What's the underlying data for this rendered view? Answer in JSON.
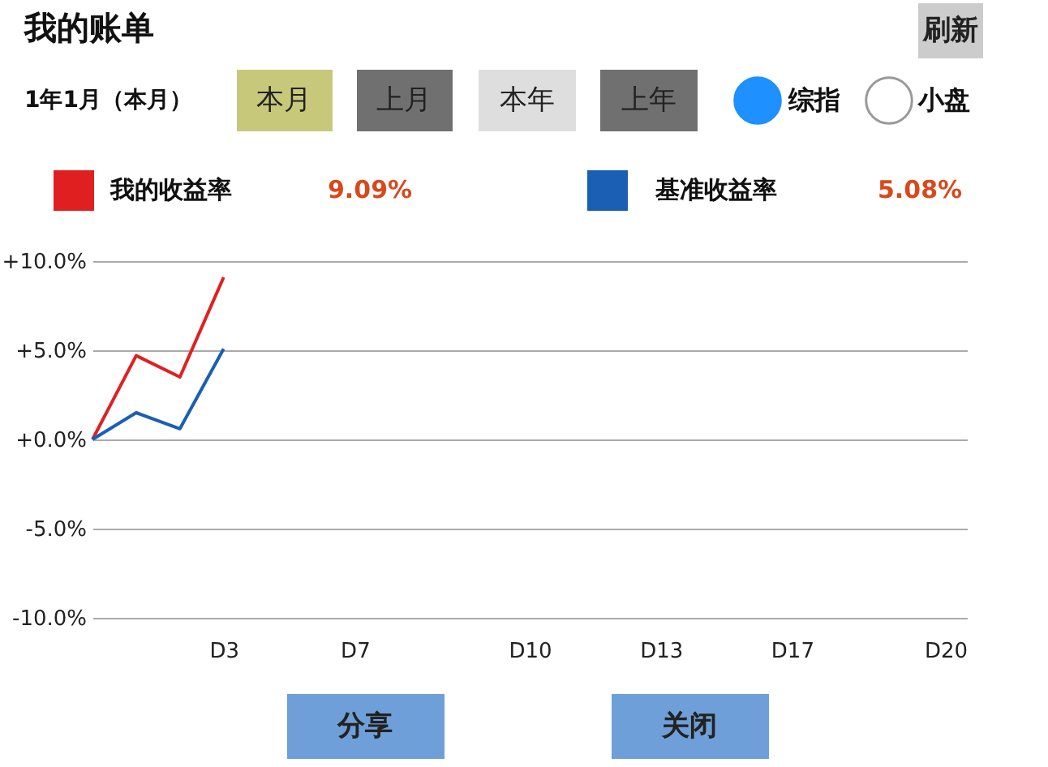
{
  "chart_data": {
    "type": "line",
    "title": "我的账单",
    "categories": [
      null,
      null,
      null,
      "D3",
      null,
      null,
      "D7",
      null,
      null,
      null,
      "D10",
      null,
      null,
      "D13",
      null,
      null,
      "D17",
      null,
      null,
      null,
      "D20"
    ],
    "series": [
      {
        "name": "我的收益率",
        "color": "#e02020",
        "values": [
          0,
          4.7,
          3.5,
          9.09,
          null,
          null,
          null,
          null,
          null,
          null,
          null,
          null,
          null,
          null,
          null,
          null,
          null,
          null,
          null,
          null,
          null
        ]
      },
      {
        "name": "基准收益率",
        "color": "#1a5fb4",
        "values": [
          0,
          1.5,
          0.6,
          5.08,
          null,
          null,
          null,
          null,
          null,
          null,
          null,
          null,
          null,
          null,
          null,
          null,
          null,
          null,
          null,
          null,
          null
        ]
      }
    ],
    "ylim": [
      -10,
      10
    ],
    "yticks": [
      {
        "value": -10,
        "label": "-10.0%"
      },
      {
        "value": -5,
        "label": "-5.0%"
      },
      {
        "value": 0,
        "label": "+0.0%"
      },
      {
        "value": 5,
        "label": "+5.0%"
      },
      {
        "value": 10,
        "label": "+10.0%"
      }
    ],
    "grid": "y",
    "legend": "top",
    "marker": "none",
    "line_style": "solid",
    "annotations": [
      "刷新",
      "1年1月（本月）",
      "本月",
      "上月",
      "本年",
      "上年",
      "综指",
      "小盘",
      "9.09%",
      "5.08%",
      "分享",
      "关闭"
    ]
  }
}
